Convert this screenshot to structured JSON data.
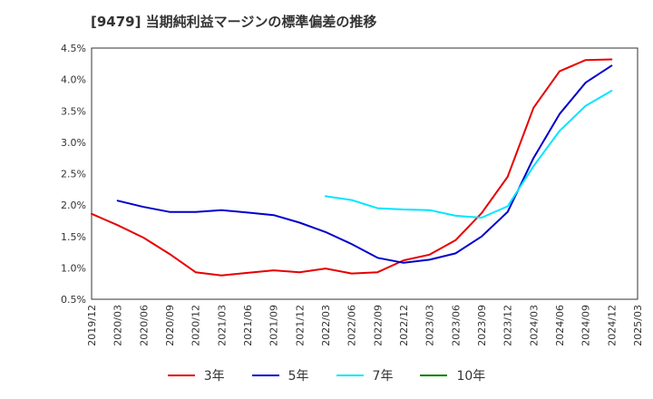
{
  "title": "[9479]  当期純利益マージンの標準偏差の推移",
  "chart_data": {
    "type": "line",
    "x": [
      "2019/12",
      "2020/03",
      "2020/06",
      "2020/09",
      "2020/12",
      "2021/03",
      "2021/06",
      "2021/09",
      "2021/12",
      "2022/03",
      "2022/06",
      "2022/09",
      "2022/12",
      "2023/03",
      "2023/06",
      "2023/09",
      "2023/12",
      "2024/03",
      "2024/06",
      "2024/09",
      "2024/12",
      "2025/03"
    ],
    "ylim": [
      0.5,
      4.5
    ],
    "yticks": [
      0.5,
      1.0,
      1.5,
      2.0,
      2.5,
      3.0,
      3.5,
      4.0,
      4.5
    ],
    "ytick_labels": [
      "0.5%",
      "1.0%",
      "1.5%",
      "2.0%",
      "2.5%",
      "3.0%",
      "3.5%",
      "4.0%",
      "4.5%"
    ],
    "grid": true,
    "legend_position": "bottom",
    "series": [
      {
        "name": "3年",
        "color": "#e60000",
        "values": [
          1.86,
          1.68,
          1.48,
          1.22,
          0.93,
          0.88,
          0.92,
          0.96,
          0.93,
          0.99,
          0.91,
          0.93,
          1.12,
          1.21,
          1.44,
          1.87,
          2.45,
          3.55,
          4.13,
          4.31,
          4.32,
          null
        ]
      },
      {
        "name": "5年",
        "color": "#0000cc",
        "values": [
          null,
          2.07,
          1.97,
          1.89,
          1.89,
          1.92,
          1.88,
          1.84,
          1.72,
          1.57,
          1.38,
          1.16,
          1.08,
          1.13,
          1.23,
          1.5,
          1.89,
          2.75,
          3.45,
          3.95,
          4.22,
          null
        ]
      },
      {
        "name": "7年",
        "color": "#00e5ff",
        "values": [
          null,
          null,
          null,
          null,
          null,
          null,
          null,
          null,
          null,
          2.14,
          2.08,
          1.95,
          1.93,
          1.92,
          1.83,
          1.8,
          1.98,
          2.62,
          3.18,
          3.58,
          3.82,
          null
        ]
      },
      {
        "name": "10年",
        "color": "#008000",
        "values": [
          null,
          null,
          null,
          null,
          null,
          null,
          null,
          null,
          null,
          null,
          null,
          null,
          null,
          null,
          null,
          null,
          null,
          null,
          null,
          null,
          null,
          null
        ]
      }
    ]
  }
}
